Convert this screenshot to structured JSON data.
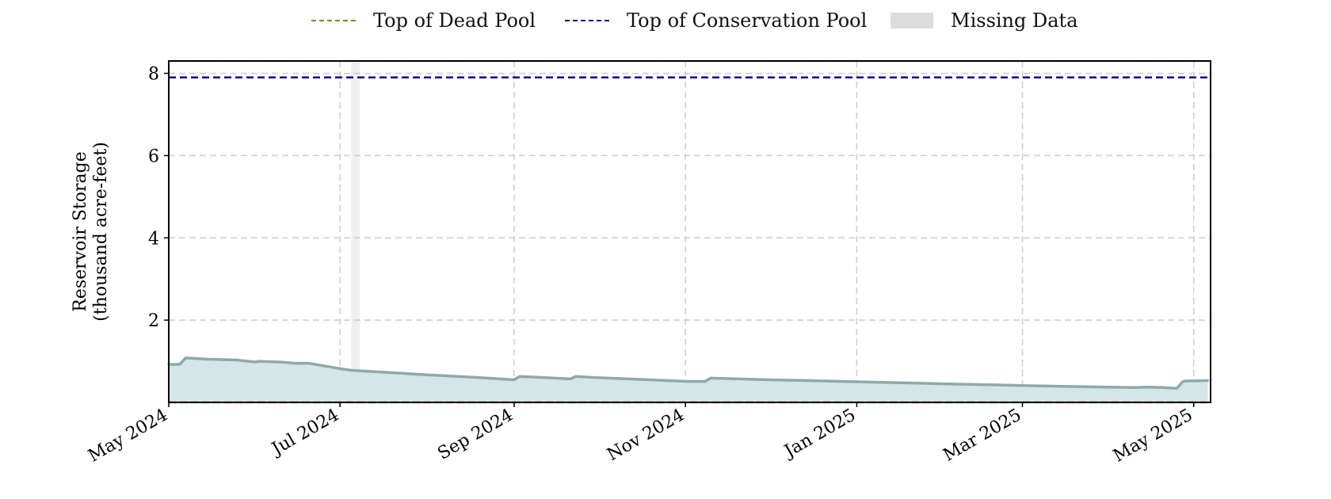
{
  "legend": {
    "dead_pool_label": "Top of Dead Pool",
    "conservation_pool_label": "Top of Conservation Pool",
    "missing_data_label": "Missing Data"
  },
  "colors": {
    "dead_pool": "#8b8000",
    "conservation_pool": "#00008b",
    "missing_data": "#dcdcdc",
    "storage_line": "#8fa9ad",
    "storage_fill": "#d6e5e8",
    "grid": "#cccccc"
  },
  "chart_data": {
    "type": "area",
    "ylabel": "Reservoir Storage\n(thousand acre-feet)",
    "xlabel": "",
    "xlim": [
      "2024-05-01",
      "2025-05-07"
    ],
    "ylim": [
      0,
      8.3
    ],
    "y_ticks": [
      2,
      4,
      6,
      8
    ],
    "x_ticks": [
      {
        "date": "2024-05-01",
        "label": "May 2024"
      },
      {
        "date": "2024-07-01",
        "label": "Jul 2024"
      },
      {
        "date": "2024-09-01",
        "label": "Sep 2024"
      },
      {
        "date": "2024-11-01",
        "label": "Nov 2024"
      },
      {
        "date": "2025-01-01",
        "label": "Jan 2025"
      },
      {
        "date": "2025-03-01",
        "label": "Mar 2025"
      },
      {
        "date": "2025-05-01",
        "label": "May 2025"
      }
    ],
    "grid": true,
    "legend_position": "top-center",
    "top_of_conservation_pool": 7.9,
    "top_of_dead_pool": 0,
    "missing_data_ranges": [
      [
        "2024-07-05",
        "2024-07-08"
      ]
    ],
    "series": [
      {
        "x": [
          "2024-05-01",
          "2024-05-03",
          "2024-05-05",
          "2024-05-07",
          "2024-05-15",
          "2024-05-20",
          "2024-05-25",
          "2024-06-01",
          "2024-06-02",
          "2024-06-10",
          "2024-06-15",
          "2024-06-20",
          "2024-07-01",
          "2024-07-05",
          "2024-07-15",
          "2024-08-01",
          "2024-08-15",
          "2024-09-01",
          "2024-09-03",
          "2024-09-10",
          "2024-09-21",
          "2024-09-23",
          "2024-10-01",
          "2024-10-15",
          "2024-11-01",
          "2024-11-08",
          "2024-11-10",
          "2024-11-15",
          "2024-12-01",
          "2024-12-15",
          "2025-01-01",
          "2025-01-15",
          "2025-02-01",
          "2025-02-15",
          "2025-03-01",
          "2025-03-15",
          "2025-04-01",
          "2025-04-10",
          "2025-04-15",
          "2025-04-20",
          "2025-04-23",
          "2025-04-25",
          "2025-04-27",
          "2025-04-28",
          "2025-05-06"
        ],
        "values": [
          0.93,
          0.92,
          0.93,
          1.08,
          1.05,
          1.04,
          1.03,
          0.98,
          1.0,
          0.98,
          0.95,
          0.95,
          0.82,
          0.78,
          0.74,
          0.67,
          0.62,
          0.55,
          0.63,
          0.61,
          0.57,
          0.63,
          0.6,
          0.56,
          0.51,
          0.51,
          0.59,
          0.58,
          0.55,
          0.53,
          0.5,
          0.48,
          0.45,
          0.43,
          0.41,
          0.39,
          0.37,
          0.36,
          0.37,
          0.36,
          0.35,
          0.34,
          0.5,
          0.52,
          0.53
        ]
      }
    ]
  }
}
